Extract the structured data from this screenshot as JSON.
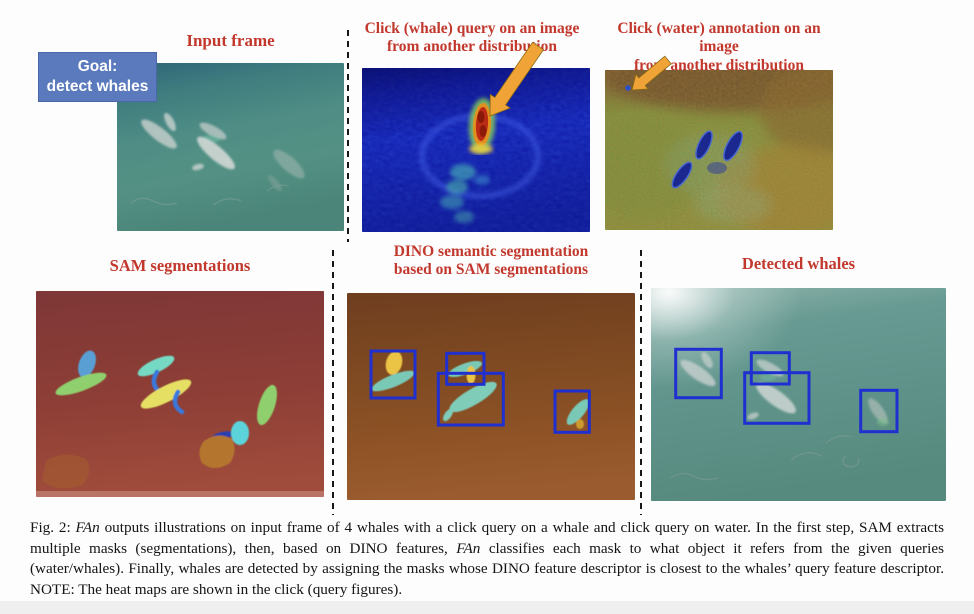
{
  "figure": {
    "goal_box": {
      "line1": "Goal:",
      "line2": "detect whales"
    },
    "panels": {
      "input_frame": {
        "label": "Input frame"
      },
      "whale_query": {
        "label1": "Click (whale) query on an image",
        "label2": "from another distribution"
      },
      "water_annotation": {
        "label1": "Click (water) annotation on an image",
        "label2": "from another distribution"
      },
      "sam": {
        "label": "SAM segmentations"
      },
      "dino": {
        "label1": "DINO semantic segmentation",
        "label2": "based on SAM segmentations"
      },
      "detected": {
        "label": "Detected whales"
      }
    },
    "caption": {
      "figure_number": "Fig. 2:",
      "segments": [
        {
          "text": "Fig. 2: ",
          "italic": false
        },
        {
          "text": "FAn",
          "italic": true
        },
        {
          "text": " outputs illustrations on input frame of 4 whales with a click query on a whale and click query on water. In the first step, SAM extracts multiple masks (segmentations), then, based on DINO features, ",
          "italic": false
        },
        {
          "text": "FAn",
          "italic": true
        },
        {
          "text": " classifies each mask to what object it refers from the given queries (water/whales). Finally, whales are detected by assigning the masks whose DINO feature descriptor is closest to the whales’ query feature descriptor. NOTE: The heat maps are shown in the click (query figures).",
          "italic": false
        }
      ]
    },
    "colors": {
      "label_red": "#c2382d",
      "goal_blue": "#5b7abd",
      "bbox_blue": "#1f2fd0",
      "arrow_orange": "#f0a336",
      "divider_black": "#171717"
    }
  }
}
